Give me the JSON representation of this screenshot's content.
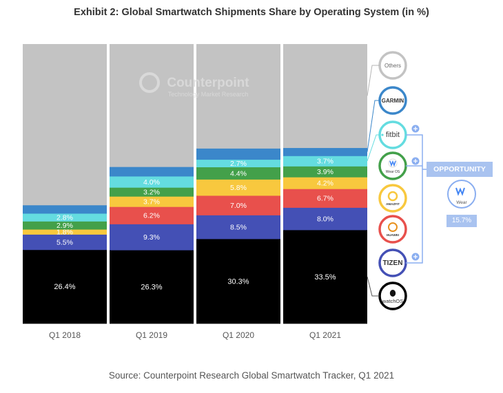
{
  "title": "Exhibit 2: Global Smartwatch Shipments Share by Operating System (in %)",
  "source": "Source: Counterpoint Research Global Smartwatch Tracker, Q1 2021",
  "watermark": {
    "name": "Counterpoint",
    "tagline": "Technology Market Research"
  },
  "colors": {
    "watchOS": "#000000",
    "Tizen": "#4450b5",
    "Huawei LiteOS": "#e8504c",
    "Amazfit": "#f8c83e",
    "Wear OS": "#43a04a",
    "Fitbit": "#64dce0",
    "Garmin": "#3b87ca",
    "Others": "#c3c3c3",
    "opportunity": "#a9c3f0"
  },
  "chart_data": {
    "type": "bar",
    "stacked": true,
    "ylim": [
      0,
      100
    ],
    "categories": [
      "Q1 2018",
      "Q1 2019",
      "Q1 2020",
      "Q1 2021"
    ],
    "series": [
      {
        "name": "watchOS",
        "values": [
          26.4,
          26.3,
          30.3,
          33.5
        ],
        "labels": [
          "26.4%",
          "26.3%",
          "30.3%",
          "33.5%"
        ]
      },
      {
        "name": "Tizen",
        "values": [
          5.5,
          9.3,
          8.5,
          8.0
        ],
        "labels": [
          "5.5%",
          "9.3%",
          "8.5%",
          "8.0%"
        ]
      },
      {
        "name": "Huawei LiteOS",
        "values": [
          0,
          6.2,
          7.0,
          6.7
        ],
        "labels": [
          "",
          "6.2%",
          "7.0%",
          "6.7%"
        ]
      },
      {
        "name": "Amazfit",
        "values": [
          1.8,
          3.7,
          5.8,
          4.2
        ],
        "labels": [
          "1.8%",
          "3.7%",
          "5.8%",
          "4.2%"
        ]
      },
      {
        "name": "Wear OS",
        "values": [
          2.9,
          3.2,
          4.4,
          3.9
        ],
        "labels": [
          "2.9%",
          "3.2%",
          "4.4%",
          "3.9%"
        ]
      },
      {
        "name": "Fitbit",
        "values": [
          2.8,
          4.0,
          2.7,
          3.7
        ],
        "labels": [
          "2.8%",
          "4.0%",
          "2.7%",
          "3.7%"
        ]
      },
      {
        "name": "Garmin",
        "values": [
          3.0,
          3.4,
          4.0,
          2.9
        ],
        "labels": [
          "",
          "",
          "",
          ""
        ]
      },
      {
        "name": "Others",
        "values": [
          57.6,
          43.9,
          37.3,
          37.1
        ],
        "labels": [
          "",
          "",
          "",
          ""
        ]
      }
    ],
    "legend_logos": [
      {
        "series": "Others",
        "text": "Others"
      },
      {
        "series": "Garmin",
        "text": "GARMIN"
      },
      {
        "series": "Fitbit",
        "text": "fitbit"
      },
      {
        "series": "Wear OS",
        "text": "Wear OS"
      },
      {
        "series": "Amazfit",
        "text": "AMAZFIT"
      },
      {
        "series": "Huawei LiteOS",
        "text": "HUAWEI"
      },
      {
        "series": "Tizen",
        "text": "TIZEN"
      },
      {
        "series": "watchOS",
        "text": "watchOS"
      }
    ],
    "annotation": {
      "title": "OPPORTUNITY",
      "logo_text": "Wear",
      "value": "15.7%"
    }
  }
}
